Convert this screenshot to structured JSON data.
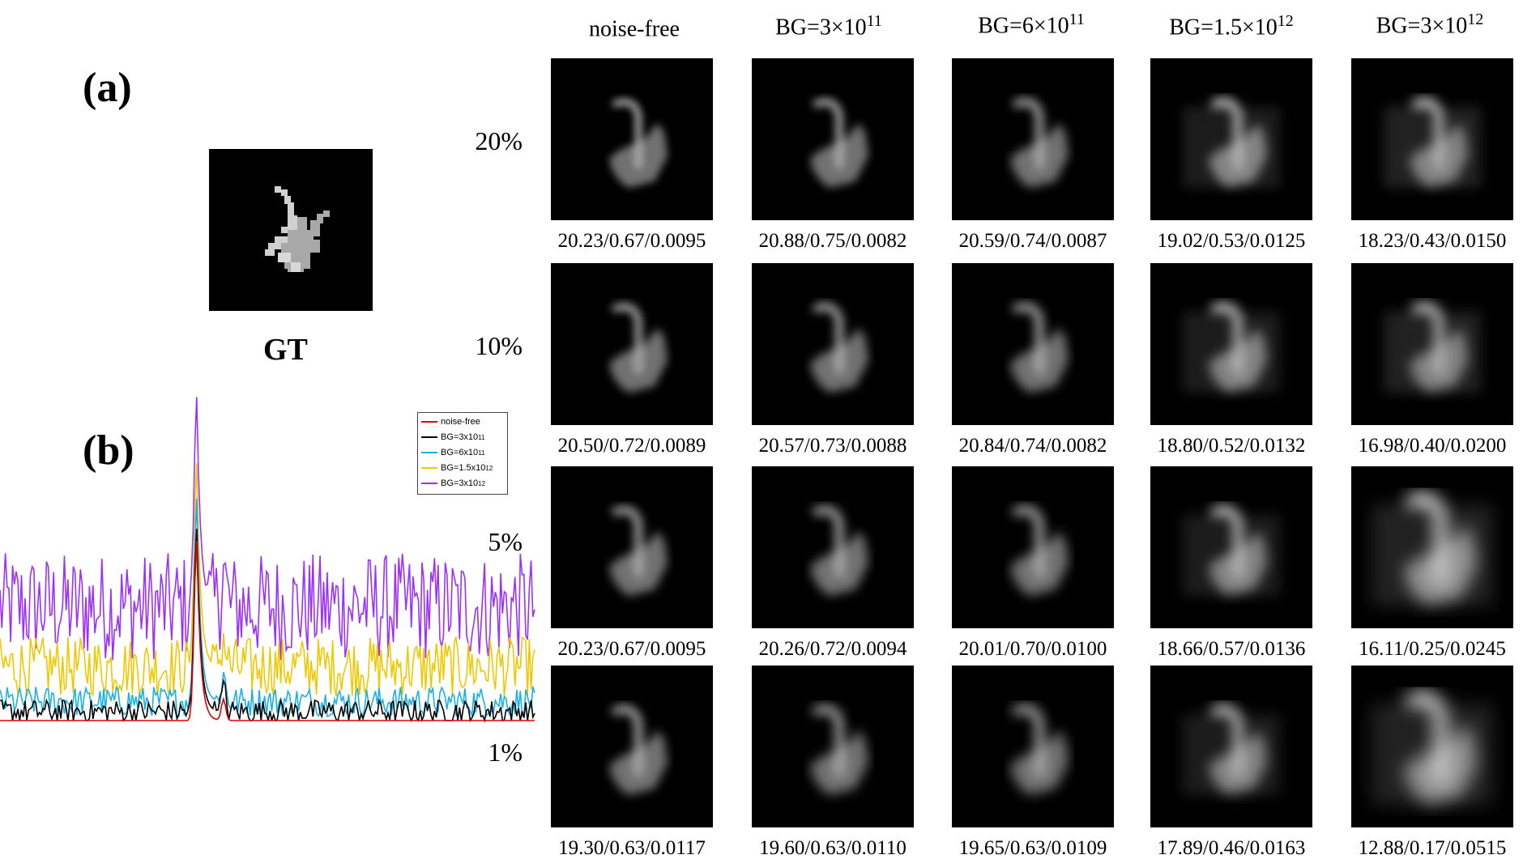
{
  "panel_a_label": "(a)",
  "panel_b_label": "(b)",
  "gt_label": "GT",
  "columns": [
    {
      "base": "noise-free",
      "sup": ""
    },
    {
      "base": "BG=3×10",
      "sup": "11"
    },
    {
      "base": "BG=6×10",
      "sup": "11"
    },
    {
      "base": "BG=1.5×10",
      "sup": "12"
    },
    {
      "base": "BG=3×10",
      "sup": "12"
    }
  ],
  "rows": [
    {
      "label": "20%",
      "metrics": [
        "20.23/0.67/0.0095",
        "20.88/0.75/0.0082",
        "20.59/0.74/0.0087",
        "19.02/0.53/0.0125",
        "18.23/0.43/0.0150"
      ]
    },
    {
      "label": "10%",
      "metrics": [
        "20.50/0.72/0.0089",
        "20.57/0.73/0.0088",
        "20.84/0.74/0.0082",
        "18.80/0.52/0.0132",
        "16.98/0.40/0.0200"
      ]
    },
    {
      "label": "5%",
      "metrics": [
        "20.23/0.67/0.0095",
        "20.26/0.72/0.0094",
        "20.01/0.70/0.0100",
        "18.66/0.57/0.0136",
        "16.11/0.25/0.0245"
      ]
    },
    {
      "label": "1%",
      "metrics": [
        "19.30/0.63/0.0117",
        "19.60/0.63/0.0110",
        "19.65/0.63/0.0109",
        "17.89/0.46/0.0163",
        "12.88/0.17/0.0515"
      ]
    }
  ],
  "chart_data": {
    "type": "line",
    "title": "",
    "xlabel": "",
    "ylabel": "",
    "grid": false,
    "legend_position": "top-right",
    "x_count": 300,
    "peak_x": 110,
    "series": [
      {
        "name": "noise-free",
        "base": "noise-free",
        "sup": "",
        "color": "#e00000",
        "baseline": 0,
        "noise": 0,
        "peak": 30
      },
      {
        "name": "BG=3x10^11",
        "base": "BG=3x10",
        "sup": "11",
        "color": "#000000",
        "baseline": 1.5,
        "noise": 2,
        "peak": 32
      },
      {
        "name": "BG=6x10^11",
        "base": "BG=6x10",
        "sup": "11",
        "color": "#1ab2e6",
        "baseline": 3.2,
        "noise": 2.5,
        "peak": 37
      },
      {
        "name": "BG=1.5x10^12",
        "base": "BG=1.5x10",
        "sup": "12",
        "color": "#f0c800",
        "baseline": 9,
        "noise": 5,
        "peak": 43
      },
      {
        "name": "BG=3x10^12",
        "base": "BG=3x10",
        "sup": "12",
        "color": "#9b30ff",
        "baseline": 19,
        "noise": 9,
        "peak": 54
      }
    ]
  }
}
